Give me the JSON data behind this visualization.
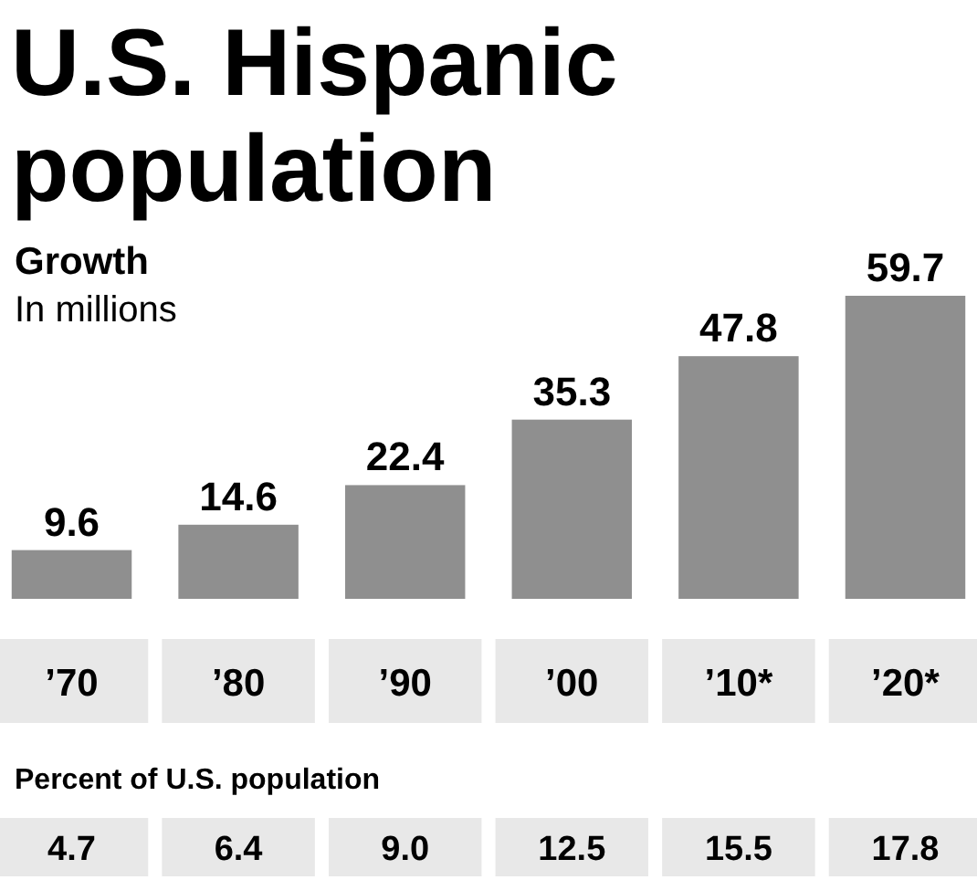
{
  "chart_data": {
    "type": "bar",
    "title": "U.S. Hispanic population",
    "subtitle": "Growth",
    "ylabel": "In millions",
    "categories": [
      "’70",
      "’80",
      "’90",
      "’00",
      "’10*",
      "’20*"
    ],
    "values": [
      9.6,
      14.6,
      22.4,
      35.3,
      47.8,
      59.7
    ],
    "color": "#8f8f8f",
    "data_labels": true,
    "annotations": [
      "Percent of U.S. population",
      "4.7",
      "6.4",
      "9.0",
      "12.5",
      "15.5",
      "17.8"
    ]
  }
}
